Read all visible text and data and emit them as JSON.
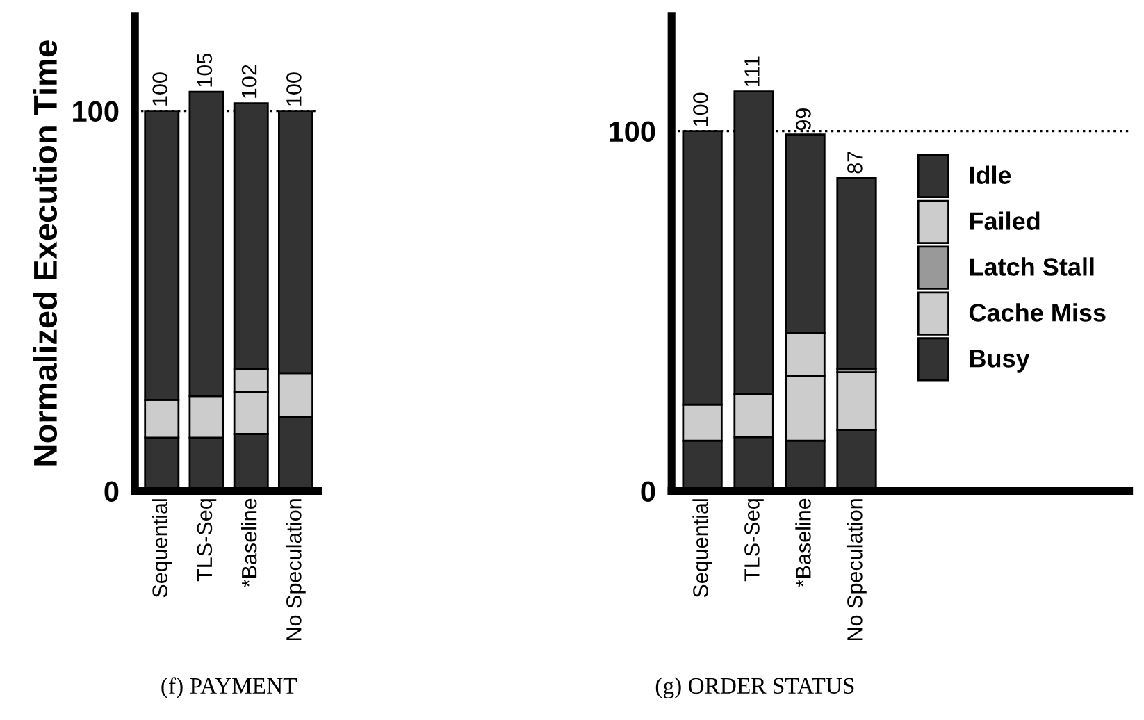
{
  "chart_data": [
    {
      "type": "bar",
      "stacked": true,
      "ylabel": "Normalized Execution Time",
      "categories": [
        "Sequential",
        "TLS-Seq",
        "*Baseline",
        "No Speculation"
      ],
      "series": [
        {
          "color": "#333333",
          "values": [
            14,
            14,
            15,
            19.5
          ]
        },
        {
          "color": "#cccccc",
          "values": [
            10,
            11,
            11,
            11.5
          ]
        },
        {
          "color": "#cccccc",
          "values": [
            null,
            null,
            6,
            null
          ]
        },
        {
          "color": "#333333",
          "values": [
            76,
            80,
            70,
            69
          ]
        }
      ],
      "totals": [
        "100",
        "105",
        "102",
        "100"
      ],
      "ylim": [
        0,
        125
      ],
      "yticks": [
        0,
        100
      ],
      "ref_lines": [
        {
          "axis": "y",
          "value": 100,
          "line_style": "dotted"
        }
      ],
      "annotations": [
        "(f) PAYMENT"
      ],
      "legend": false
    },
    {
      "type": "bar",
      "stacked": true,
      "categories": [
        "Sequential",
        "TLS-Seq",
        "*Baseline",
        "No Speculation"
      ],
      "series": [
        {
          "name": "Busy",
          "color": "#333333",
          "values": [
            14,
            15,
            14,
            17
          ]
        },
        {
          "name": "Cache Miss",
          "color": "#cccccc",
          "values": [
            10,
            12,
            18,
            16
          ]
        },
        {
          "name": "Latch Stall",
          "color": "#999999",
          "values": [
            null,
            null,
            null,
            1
          ]
        },
        {
          "name": "Failed",
          "color": "#cccccc",
          "values": [
            null,
            null,
            12,
            null
          ]
        },
        {
          "name": "Idle",
          "color": "#333333",
          "values": [
            76,
            84,
            55,
            53
          ]
        }
      ],
      "totals": [
        "100",
        "111",
        "99",
        "87"
      ],
      "ylim": [
        0,
        132
      ],
      "yticks": [
        0,
        100
      ],
      "ref_lines": [
        {
          "axis": "y",
          "value": 100,
          "line_style": "dotted"
        }
      ],
      "annotations": [
        "(g) ORDER STATUS"
      ],
      "legend": "right"
    }
  ]
}
